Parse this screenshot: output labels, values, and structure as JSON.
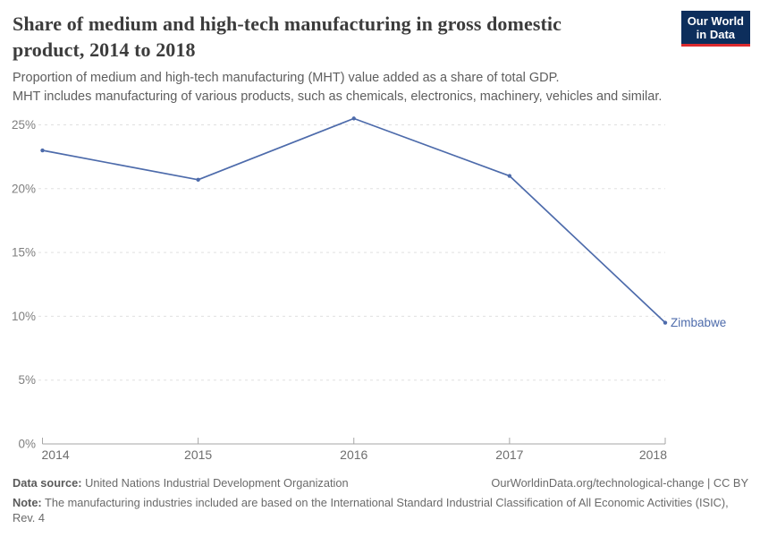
{
  "header": {
    "title": "Share of medium and high-tech manufacturing in gross domestic product, 2014 to 2018",
    "logo": {
      "line1": "Our World",
      "line2": "in Data"
    },
    "subtitle_lines": [
      "Proportion of medium and high-tech manufacturing (MHT) value added as a share of total GDP.",
      "MHT includes manufacturing of various products, such as chemicals, electronics, machinery, vehicles and similar."
    ]
  },
  "chart_data": {
    "type": "line",
    "title": "Share of medium and high-tech manufacturing in gross domestic product, 2014 to 2018",
    "x": [
      2014,
      2015,
      2016,
      2017,
      2018
    ],
    "series": [
      {
        "name": "Zimbabwe",
        "values": [
          23.0,
          20.7,
          25.5,
          21.0,
          9.5
        ],
        "color": "#4d6bab"
      }
    ],
    "ylim": [
      0,
      25
    ],
    "yticks": [
      0,
      5,
      10,
      15,
      20,
      25
    ],
    "ytick_suffix": "%",
    "xlabel": "",
    "ylabel": "",
    "grid": "dashed-horizontal",
    "legend_position": "end-of-line-label"
  },
  "colors": {
    "line": "#4d6bab",
    "grid": "#e0e0e0",
    "axis": "#a6a6a6",
    "logo_bg": "#0d2e5c",
    "logo_underline": "#dc2a2e",
    "title_text": "#3c3c3c"
  },
  "footer": {
    "data_source_label": "Data source:",
    "data_source": "United Nations Industrial Development Organization",
    "link": "OurWorldinData.org/technological-change | CC BY",
    "note_label": "Note:",
    "note": "The manufacturing industries included are based on the International Standard Industrial Classification of All Economic Activities (ISIC), Rev. 4"
  }
}
